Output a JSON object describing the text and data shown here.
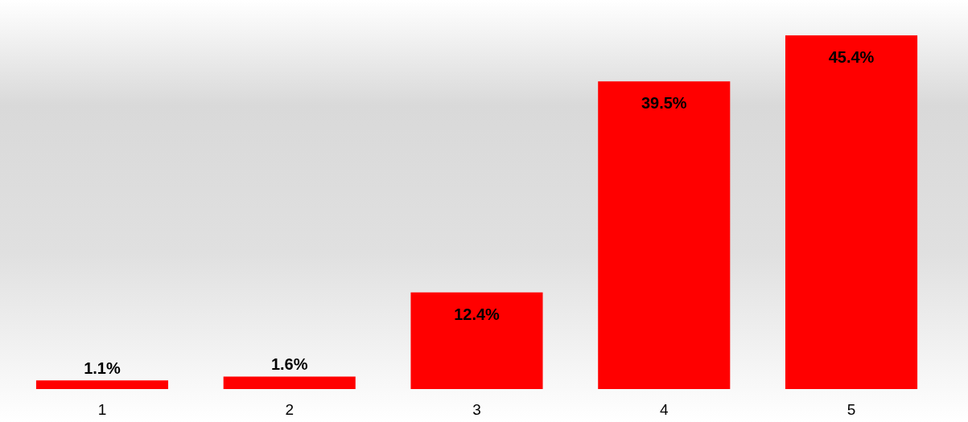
{
  "chart_data": {
    "type": "bar",
    "categories": [
      "1",
      "2",
      "3",
      "4",
      "5"
    ],
    "values": [
      1.1,
      1.6,
      12.4,
      39.5,
      45.4
    ],
    "color": "#ff0000",
    "value_labels": [
      "1.1%",
      "1.6%",
      "12.4%",
      "39.5%",
      "45.4%"
    ]
  }
}
